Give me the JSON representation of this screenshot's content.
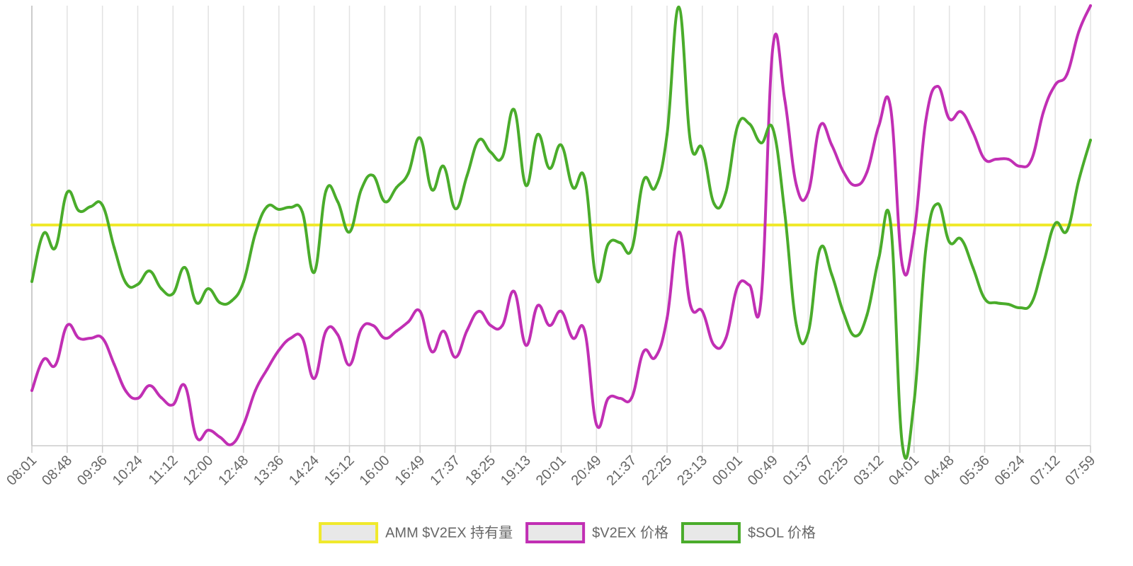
{
  "chart_data": {
    "type": "line",
    "categories": [
      "08:01",
      null,
      null,
      "08:48",
      null,
      null,
      "09:36",
      null,
      null,
      "10:24",
      null,
      null,
      "11:12",
      null,
      null,
      "12:00",
      null,
      null,
      "12:48",
      null,
      null,
      "13:36",
      null,
      null,
      "14:24",
      null,
      null,
      "15:12",
      null,
      null,
      "16:00",
      null,
      null,
      "16:49",
      null,
      null,
      "17:37",
      null,
      null,
      "18:25",
      null,
      null,
      "19:13",
      null,
      null,
      "20:01",
      null,
      null,
      "20:49",
      null,
      null,
      "21:37",
      null,
      null,
      "22:25",
      null,
      null,
      "23:13",
      null,
      null,
      "00:01",
      null,
      null,
      "00:49",
      null,
      null,
      "01:37",
      null,
      null,
      "02:25",
      null,
      null,
      "03:12",
      null,
      null,
      "04:01",
      null,
      null,
      "04:48",
      null,
      null,
      "05:36",
      null,
      null,
      "06:24",
      null,
      null,
      "07:12",
      null,
      null,
      "07:59"
    ],
    "ylim": [
      0,
      622
    ],
    "grid": true,
    "legend": "bottom",
    "series": [
      {
        "name": "AMM $V2EX 持有量",
        "color": "#f0e92c",
        "values": [
          312,
          312,
          312,
          312,
          312,
          312,
          312,
          312,
          312,
          312,
          312,
          312,
          312,
          312,
          312,
          312,
          312,
          312,
          312,
          312,
          312,
          312,
          312,
          312,
          312,
          312,
          312,
          312,
          312,
          312,
          312,
          312,
          312,
          312,
          312,
          312,
          312,
          312,
          312,
          312,
          312,
          312,
          312,
          312,
          312,
          312,
          312,
          312,
          312,
          312,
          312,
          312,
          312,
          312,
          312,
          312,
          312,
          312,
          312,
          312,
          312,
          312,
          312,
          312,
          312,
          312,
          312,
          312,
          312,
          312,
          312,
          312,
          312,
          312,
          312,
          312,
          312,
          312,
          312,
          312,
          312,
          312,
          312,
          312,
          312,
          312,
          312,
          312,
          312,
          312,
          312
        ]
      },
      {
        "name": "$V2EX 价格",
        "color": "#c12fb4",
        "values": [
          78,
          122,
          114,
          170,
          152,
          152,
          152,
          115,
          77,
          67,
          85,
          68,
          58,
          85,
          12,
          22,
          12,
          2,
          30,
          78,
          108,
          135,
          152,
          152,
          95,
          162,
          157,
          114,
          165,
          170,
          152,
          162,
          175,
          190,
          133,
          162,
          125,
          163,
          190,
          170,
          170,
          218,
          142,
          198,
          170,
          190,
          152,
          162,
          30,
          67,
          67,
          68,
          133,
          125,
          180,
          302,
          198,
          190,
          142,
          152,
          225,
          227,
          208,
          564,
          490,
          368,
          358,
          452,
          425,
          387,
          368,
          387,
          452,
          478,
          255,
          300,
          460,
          508,
          462,
          472,
          443,
          405,
          405,
          405,
          395,
          405,
          472,
          510,
          525,
          585,
          622
        ]
      },
      {
        "name": "$SOL 价格",
        "color": "#4aac2b",
        "values": [
          232,
          300,
          280,
          358,
          332,
          338,
          340,
          280,
          230,
          228,
          247,
          222,
          215,
          252,
          202,
          222,
          202,
          205,
          232,
          300,
          338,
          334,
          337,
          330,
          245,
          360,
          345,
          302,
          362,
          382,
          345,
          365,
          385,
          435,
          362,
          395,
          335,
          382,
          432,
          415,
          408,
          475,
          368,
          440,
          392,
          425,
          365,
          378,
          235,
          285,
          287,
          278,
          375,
          365,
          440,
          620,
          428,
          420,
          342,
          358,
          452,
          455,
          428,
          448,
          330,
          170,
          160,
          278,
          242,
          188,
          155,
          185,
          265,
          315,
          2,
          62,
          278,
          342,
          288,
          292,
          252,
          208,
          202,
          200,
          195,
          202,
          258,
          314,
          304,
          375,
          432
        ]
      }
    ]
  }
}
